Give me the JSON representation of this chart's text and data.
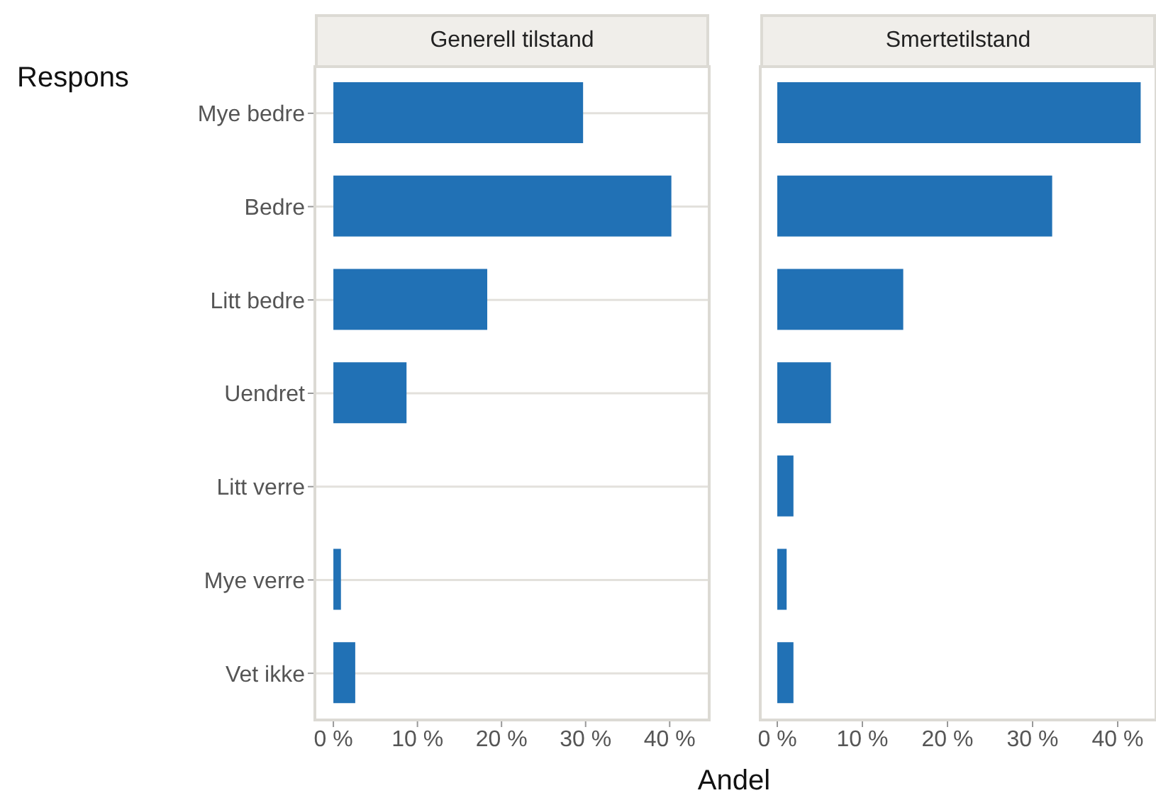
{
  "chart_data": [
    {
      "type": "bar",
      "orientation": "horizontal",
      "title": "Generell tilstand",
      "ylabel": "Respons",
      "xlabel": "Andel",
      "categories": [
        "Mye bedre",
        "Bedre",
        "Litt bedre",
        "Uendret",
        "Litt verre",
        "Mye verre",
        "Vet ikke"
      ],
      "values": [
        29.7,
        40.2,
        18.3,
        8.7,
        0,
        0.9,
        2.6
      ],
      "color": "#2171b5",
      "xlim": [
        -2.2,
        44.7
      ],
      "xticks": [
        {
          "value": 0,
          "label": "0 %"
        },
        {
          "value": 10,
          "label": "10 %"
        },
        {
          "value": 20,
          "label": "20 %"
        },
        {
          "value": 30,
          "label": "30 %"
        },
        {
          "value": 40,
          "label": "40 %"
        }
      ],
      "grid": "y",
      "legend": false
    },
    {
      "type": "bar",
      "orientation": "horizontal",
      "title": "Smertetilstand",
      "values": [
        42.7,
        32.3,
        14.8,
        6.3,
        1.9,
        1.1,
        1.9
      ],
      "color": "#2171b5",
      "xlim": [
        -2.0,
        44.5
      ],
      "xticks": [
        {
          "value": 0,
          "label": "0 %"
        },
        {
          "value": 10,
          "label": "10 %"
        },
        {
          "value": 20,
          "label": "20 %"
        },
        {
          "value": 30,
          "label": "30 %"
        },
        {
          "value": 40,
          "label": "40 %"
        }
      ],
      "grid": "y",
      "legend": false,
      "tick_labels": "x"
    }
  ]
}
